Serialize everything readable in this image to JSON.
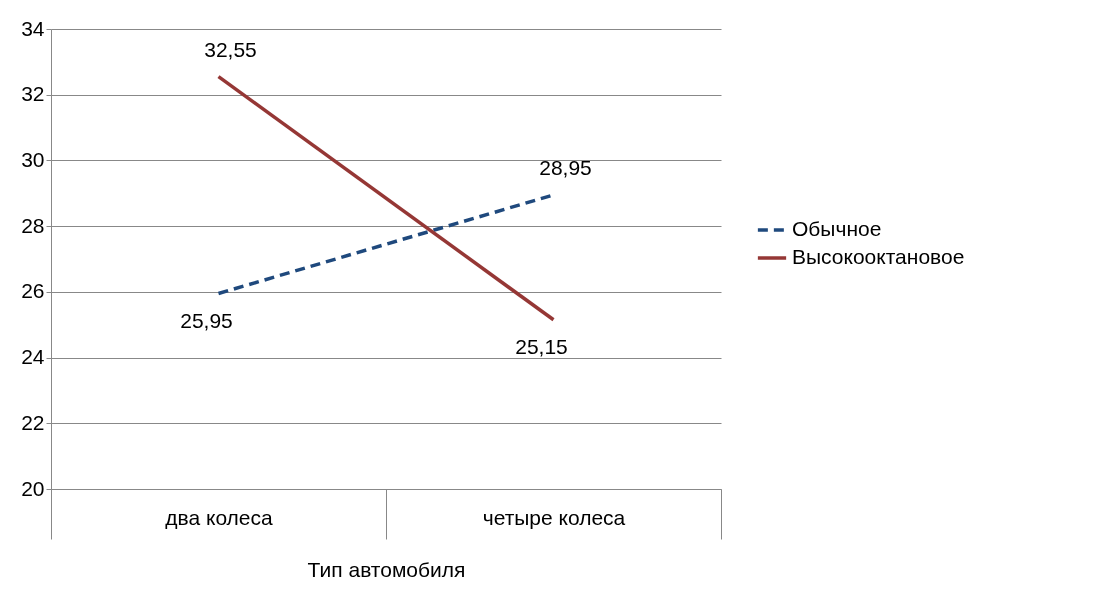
{
  "chart_data": {
    "type": "line",
    "xlabel": "Тип автомобиля",
    "categories": [
      "два колеса",
      "четыре колеса"
    ],
    "series": [
      {
        "name": "Обычное",
        "color": "#1f497d",
        "line_style": "dashed",
        "values": [
          25.95,
          28.95
        ],
        "value_labels": [
          "25,95",
          "28,95"
        ]
      },
      {
        "name": "Высокооктановое",
        "color": "#953735",
        "line_style": "solid",
        "values": [
          32.55,
          25.15
        ],
        "value_labels": [
          "32,55",
          "25,15"
        ]
      }
    ],
    "ylim": [
      20,
      34
    ],
    "yticks": [
      20,
      22,
      24,
      26,
      28,
      30,
      32,
      34
    ],
    "grid": "y",
    "legend": "right",
    "marker": "none"
  }
}
